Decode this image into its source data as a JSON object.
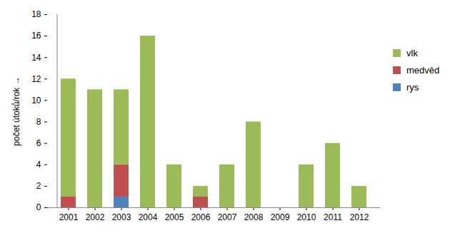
{
  "chart_data": {
    "type": "bar",
    "stacked": true,
    "y_label": "počet útoků/rok",
    "categories": [
      "2001",
      "2002",
      "2003",
      "2004",
      "2005",
      "2006",
      "2007",
      "2008",
      "2009",
      "2010",
      "2011",
      "2012"
    ],
    "series": [
      {
        "name": "rys",
        "color": "#4f81bd",
        "values": [
          0,
          0,
          1,
          0,
          0,
          0,
          0,
          0,
          0,
          0,
          0,
          0
        ]
      },
      {
        "name": "medvěd",
        "color": "#c0504d",
        "values": [
          1,
          0,
          3,
          0,
          0,
          1,
          0,
          0,
          0,
          0,
          0,
          0
        ]
      },
      {
        "name": "vlk",
        "color": "#9bbb59",
        "values": [
          11,
          11,
          7,
          16,
          4,
          1,
          4,
          8,
          0,
          4,
          6,
          2
        ]
      }
    ],
    "ylim": [
      0,
      18
    ],
    "yticks": [
      0,
      2,
      4,
      6,
      8,
      10,
      12,
      14,
      16,
      18
    ],
    "grid": false,
    "legend": "right"
  }
}
